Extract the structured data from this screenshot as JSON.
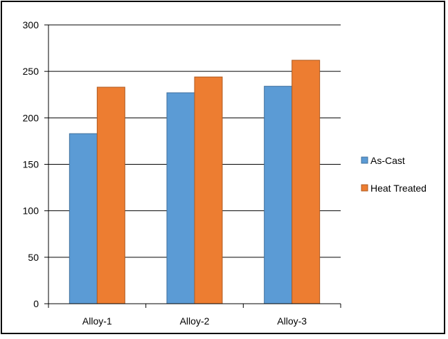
{
  "chart_data": {
    "type": "bar",
    "categories": [
      "Alloy-1",
      "Alloy-2",
      "Alloy-3"
    ],
    "series": [
      {
        "name": "As-Cast",
        "values": [
          183,
          227,
          234
        ],
        "color": "#5B9BD5"
      },
      {
        "name": "Heat Treated",
        "values": [
          233,
          244,
          262
        ],
        "color": "#ED7D31"
      }
    ],
    "ylim": [
      0,
      300
    ],
    "yticks": [
      "0",
      "50",
      "100",
      "150",
      "200",
      "250",
      "300"
    ],
    "grid": true,
    "legend_position": "right",
    "title": "",
    "xlabel": "",
    "ylabel": ""
  }
}
